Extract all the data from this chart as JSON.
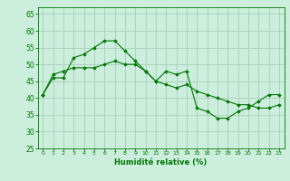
{
  "xlabel": "Humidité relative (%)",
  "background_color": "#cceedd",
  "grid_color": "#aaccbb",
  "line_color": "#007700",
  "ylim": [
    25,
    67
  ],
  "xlim": [
    -0.5,
    23.5
  ],
  "yticks": [
    25,
    30,
    35,
    40,
    45,
    50,
    55,
    60,
    65
  ],
  "xticks": [
    0,
    1,
    2,
    3,
    4,
    5,
    6,
    7,
    8,
    9,
    10,
    11,
    12,
    13,
    14,
    15,
    16,
    17,
    18,
    19,
    20,
    21,
    22,
    23
  ],
  "series1": [
    41,
    46,
    46,
    52,
    53,
    55,
    57,
    57,
    54,
    51,
    48,
    45,
    48,
    47,
    48,
    37,
    36,
    34,
    34,
    36,
    37,
    39,
    41,
    41
  ],
  "series2": [
    41,
    47,
    48,
    49,
    49,
    49,
    50,
    51,
    50,
    50,
    48,
    45,
    44,
    43,
    44,
    42,
    41,
    40,
    39,
    38,
    38,
    37,
    37,
    38
  ]
}
